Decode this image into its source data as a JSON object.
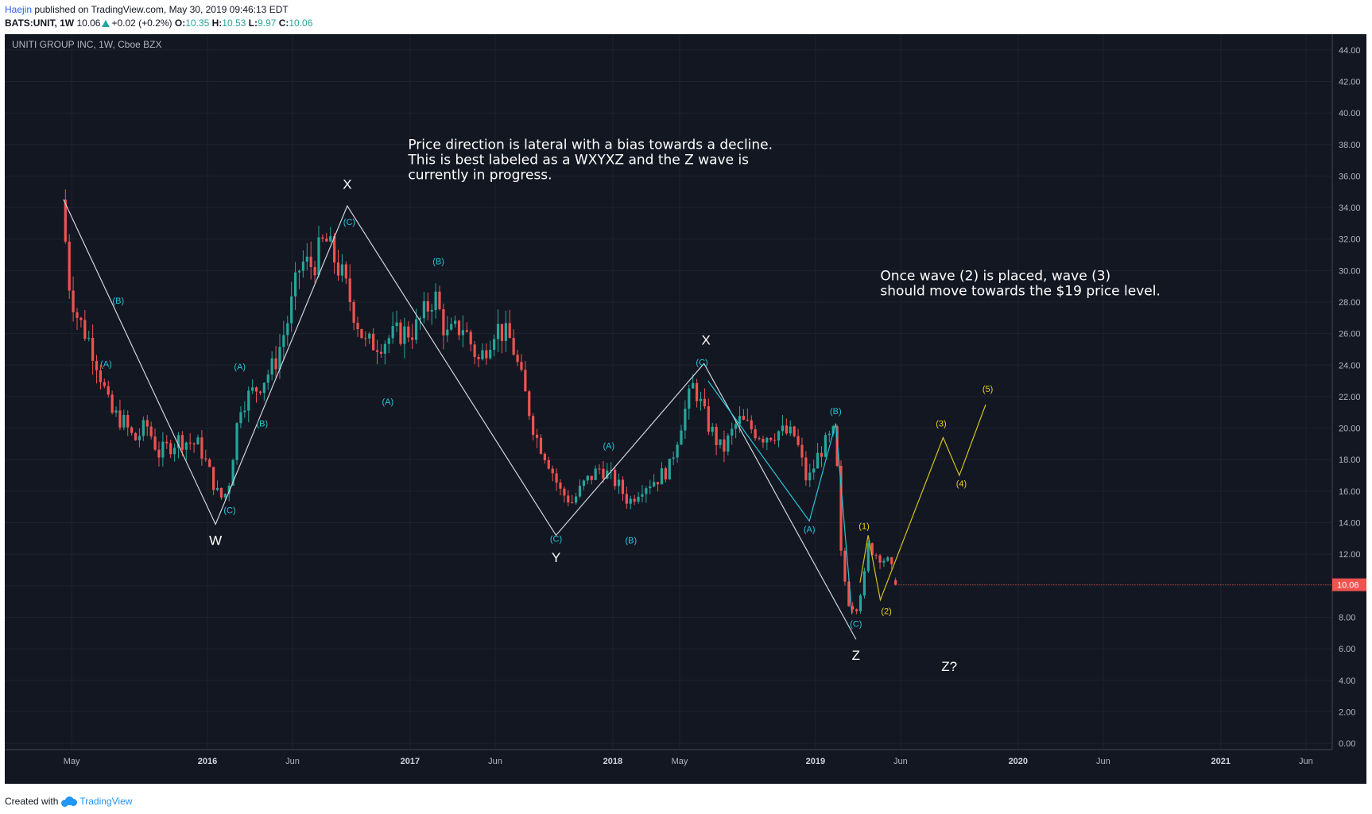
{
  "header": {
    "author": "Haejin",
    "published": "published on TradingView.com, May 30, 2019 09:46:13 EDT",
    "symbol": "BATS:UNIT, 1W",
    "last": "10.06",
    "change": "+0.02 (+0.2%)",
    "open_label": "O:",
    "open": "10.35",
    "high_label": "H:",
    "high": "10.53",
    "low_label": "L:",
    "low": "9.97",
    "close_label": "C:",
    "close": "10.06"
  },
  "chart_data": {
    "type": "candlestick",
    "title": "UNITI GROUP INC, 1W, Cboe BZX",
    "ylim": [
      -0.4,
      45
    ],
    "y_ticks": [
      "0.00",
      "2.00",
      "4.00",
      "6.00",
      "8.00",
      "10.00",
      "12.00",
      "14.00",
      "16.00",
      "18.00",
      "20.00",
      "22.00",
      "24.00",
      "26.00",
      "28.00",
      "30.00",
      "32.00",
      "34.00",
      "36.00",
      "38.00",
      "40.00",
      "42.00",
      "44.00"
    ],
    "x_ticks": [
      {
        "label": "May",
        "t": 2015.33
      },
      {
        "label": "2016",
        "t": 2016.0
      },
      {
        "label": "Jun",
        "t": 2016.42
      },
      {
        "label": "2017",
        "t": 2017.0
      },
      {
        "label": "Jun",
        "t": 2017.42
      },
      {
        "label": "2018",
        "t": 2018.0
      },
      {
        "label": "May",
        "t": 2018.33
      },
      {
        "label": "2019",
        "t": 2019.0
      },
      {
        "label": "Jun",
        "t": 2019.42
      },
      {
        "label": "2020",
        "t": 2020.0
      },
      {
        "label": "Jun",
        "t": 2020.42
      },
      {
        "label": "2021",
        "t": 2021.0
      },
      {
        "label": "Jun",
        "t": 2021.42
      }
    ],
    "last_price": 10.06,
    "last_price_label": "10.06",
    "grid": true,
    "colors": {
      "up": "#26a69a",
      "down": "#ef5350",
      "background": "#131722",
      "grid": "#1e222d",
      "text": "#b2b5be",
      "white_wave": "#d1d4dc",
      "cyan_wave": "#26c6da",
      "yellow_wave": "#d4c21a",
      "price_tag": "#ef5350"
    },
    "price_path": [
      [
        2015.28,
        34.5
      ],
      [
        2015.32,
        29
      ],
      [
        2015.36,
        27
      ],
      [
        2015.42,
        25.5
      ],
      [
        2015.46,
        24
      ],
      [
        2015.52,
        21
      ],
      [
        2015.58,
        20.5
      ],
      [
        2015.64,
        19.2
      ],
      [
        2015.7,
        20.2
      ],
      [
        2015.76,
        18.4
      ],
      [
        2015.86,
        19.3
      ],
      [
        2015.96,
        18.9
      ],
      [
        2016.06,
        15.5
      ],
      [
        2016.1,
        16
      ],
      [
        2016.16,
        21.5
      ],
      [
        2016.24,
        22.5
      ],
      [
        2016.33,
        24
      ],
      [
        2016.4,
        27
      ],
      [
        2016.46,
        30.5
      ],
      [
        2016.52,
        30.3
      ],
      [
        2016.58,
        32
      ],
      [
        2016.66,
        29.8
      ],
      [
        2016.72,
        27.5
      ],
      [
        2016.78,
        25.3
      ],
      [
        2016.86,
        25.5
      ],
      [
        2016.94,
        26
      ],
      [
        2017.02,
        26.2
      ],
      [
        2017.08,
        27.5
      ],
      [
        2017.12,
        28.5
      ],
      [
        2017.18,
        25.8
      ],
      [
        2017.26,
        26.5
      ],
      [
        2017.34,
        24.2
      ],
      [
        2017.42,
        26.5
      ],
      [
        2017.5,
        25.5
      ],
      [
        2017.56,
        22.5
      ],
      [
        2017.62,
        19.5
      ],
      [
        2017.68,
        18
      ],
      [
        2017.74,
        16
      ],
      [
        2017.8,
        15.3
      ],
      [
        2017.86,
        16.5
      ],
      [
        2017.94,
        17.5
      ],
      [
        2018.02,
        16.5
      ],
      [
        2018.08,
        15.3
      ],
      [
        2018.14,
        16.3
      ],
      [
        2018.22,
        16.8
      ],
      [
        2018.28,
        17.5
      ],
      [
        2018.34,
        20.5
      ],
      [
        2018.4,
        22.8
      ],
      [
        2018.46,
        20.5
      ],
      [
        2018.54,
        18.5
      ],
      [
        2018.62,
        20.5
      ],
      [
        2018.68,
        20
      ],
      [
        2018.74,
        19.5
      ],
      [
        2018.82,
        19.8
      ],
      [
        2018.9,
        19.5
      ],
      [
        2018.96,
        16.5
      ],
      [
        2019.02,
        18.5
      ],
      [
        2019.1,
        19.8
      ],
      [
        2019.12,
        12.5
      ],
      [
        2019.16,
        9
      ],
      [
        2019.2,
        8.5
      ],
      [
        2019.24,
        10.5
      ],
      [
        2019.26,
        12.5
      ],
      [
        2019.3,
        12
      ],
      [
        2019.36,
        11.5
      ],
      [
        2019.41,
        10.06
      ]
    ],
    "waves": {
      "white": [
        [
          2015.29,
          34.5
        ],
        [
          2016.04,
          13.9
        ],
        [
          2016.69,
          34.1
        ],
        [
          2017.72,
          13.2
        ],
        [
          2018.45,
          24.1
        ],
        [
          2019.2,
          6.6
        ]
      ],
      "cyan_1": [
        [
          2018.47,
          23
        ],
        [
          2018.97,
          14.1
        ],
        [
          2019.1,
          20.3
        ],
        [
          2019.18,
          8.2
        ]
      ],
      "yellow": [
        [
          2019.22,
          10.2
        ],
        [
          2019.26,
          13.2
        ],
        [
          2019.32,
          9.1
        ],
        [
          2019.63,
          19.4
        ],
        [
          2019.71,
          17
        ],
        [
          2019.84,
          21.5
        ]
      ]
    },
    "labels": [
      {
        "text": "X",
        "t": 2016.69,
        "y": 35.2,
        "color": "white",
        "size": 17
      },
      {
        "text": "W",
        "t": 2016.04,
        "y": 12.6,
        "color": "white",
        "size": 17
      },
      {
        "text": "Y",
        "t": 2017.72,
        "y": 11.5,
        "color": "white",
        "size": 17
      },
      {
        "text": "X",
        "t": 2018.46,
        "y": 25.3,
        "color": "white",
        "size": 17
      },
      {
        "text": "Z",
        "t": 2019.2,
        "y": 5.3,
        "color": "white",
        "size": 17
      },
      {
        "text": "Z?",
        "t": 2019.66,
        "y": 4.6,
        "color": "white",
        "size": 17
      },
      {
        "text": "(B)",
        "t": 2015.56,
        "y": 27.9,
        "color": "cyan",
        "size": 11
      },
      {
        "text": "(A)",
        "t": 2015.5,
        "y": 23.9,
        "color": "cyan",
        "size": 11
      },
      {
        "text": "(C)",
        "t": 2016.11,
        "y": 14.6,
        "color": "cyan",
        "size": 11
      },
      {
        "text": "(A)",
        "t": 2016.16,
        "y": 23.7,
        "color": "cyan",
        "size": 11
      },
      {
        "text": "(B)",
        "t": 2016.27,
        "y": 20.1,
        "color": "cyan",
        "size": 11
      },
      {
        "text": "(C)",
        "t": 2016.7,
        "y": 32.9,
        "color": "cyan",
        "size": 11
      },
      {
        "text": "(A)",
        "t": 2016.89,
        "y": 21.5,
        "color": "cyan",
        "size": 11
      },
      {
        "text": "(B)",
        "t": 2017.14,
        "y": 30.4,
        "color": "cyan",
        "size": 11
      },
      {
        "text": "(C)",
        "t": 2017.72,
        "y": 12.8,
        "color": "cyan",
        "size": 11
      },
      {
        "text": "(A)",
        "t": 2017.98,
        "y": 18.7,
        "color": "cyan",
        "size": 11
      },
      {
        "text": "(B)",
        "t": 2018.09,
        "y": 12.7,
        "color": "cyan",
        "size": 11
      },
      {
        "text": "(C)",
        "t": 2018.44,
        "y": 24.0,
        "color": "cyan",
        "size": 11
      },
      {
        "text": "(A)",
        "t": 2018.97,
        "y": 13.4,
        "color": "cyan",
        "size": 11
      },
      {
        "text": "(B)",
        "t": 2019.1,
        "y": 20.9,
        "color": "cyan",
        "size": 11
      },
      {
        "text": "(C)",
        "t": 2019.2,
        "y": 7.4,
        "color": "cyan",
        "size": 11
      },
      {
        "text": "(1)",
        "t": 2019.24,
        "y": 13.6,
        "color": "yellow",
        "size": 11
      },
      {
        "text": "(2)",
        "t": 2019.35,
        "y": 8.2,
        "color": "yellow",
        "size": 11
      },
      {
        "text": "(3)",
        "t": 2019.62,
        "y": 20.1,
        "color": "yellow",
        "size": 11
      },
      {
        "text": "(4)",
        "t": 2019.72,
        "y": 16.3,
        "color": "yellow",
        "size": 11
      },
      {
        "text": "(5)",
        "t": 2019.85,
        "y": 22.3,
        "color": "yellow",
        "size": 11
      }
    ],
    "annotations": [
      {
        "lines": [
          "Price direction is lateral with a bias towards a decline.",
          "This is best labeled as a WXYXZ and the Z wave is",
          "currently in progress."
        ],
        "t": 2016.99,
        "y": 37.7
      },
      {
        "lines": [
          "Once wave (2) is placed, wave (3)",
          "should move towards the $19 price level."
        ],
        "t": 2019.32,
        "y": 29.4
      }
    ]
  },
  "footer": {
    "created_with": "Created with",
    "brand": "TradingView"
  }
}
